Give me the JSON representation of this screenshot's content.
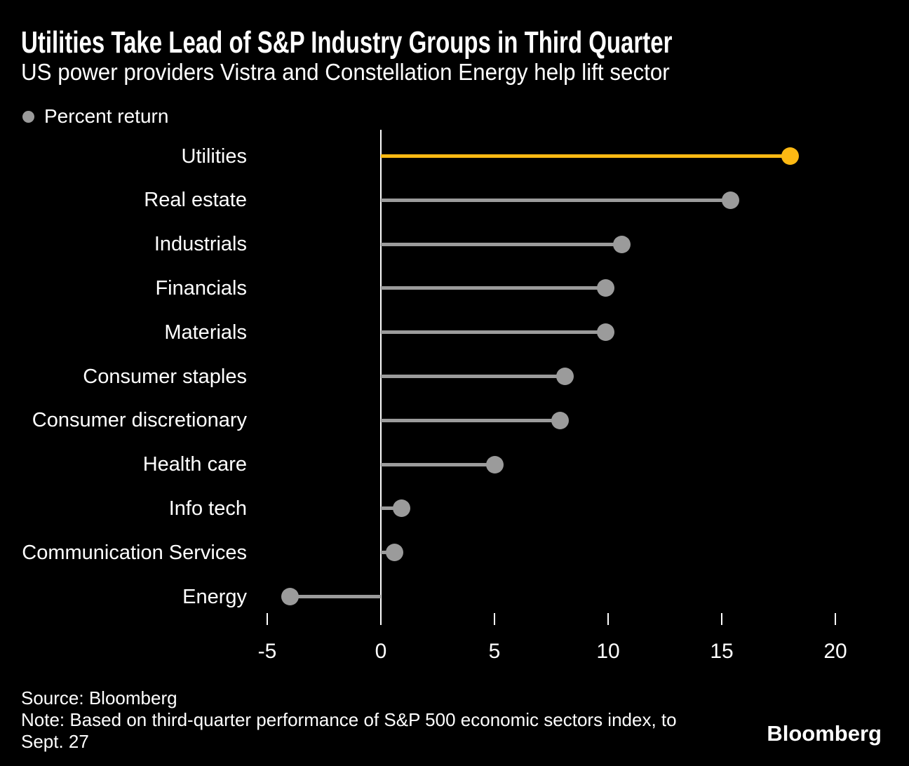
{
  "header": {
    "title": "Utilities Take Lead of S&P Industry Groups in Third Quarter",
    "subtitle": "US power providers Vistra and Constellation Energy help lift sector"
  },
  "legend": {
    "label": "Percent return"
  },
  "chart_data": {
    "type": "lollipop",
    "orientation": "horizontal",
    "title": "Utilities Take Lead of S&P Industry Groups in Third Quarter",
    "subtitle": "US power providers Vistra and Constellation Energy help lift sector",
    "legend_label": "Percent return",
    "legend_position": "top-left",
    "categories": [
      "Utilities",
      "Real estate",
      "Industrials",
      "Financials",
      "Materials",
      "Consumer staples",
      "Consumer discretionary",
      "Health care",
      "Info tech",
      "Communication Services",
      "Energy"
    ],
    "values": [
      18.0,
      15.4,
      10.6,
      9.9,
      9.9,
      8.1,
      7.9,
      5.0,
      0.9,
      0.6,
      -4.0
    ],
    "xlabel": "",
    "ylabel": "",
    "x_ticks": [
      -5,
      0,
      5,
      10,
      15,
      20
    ],
    "xlim": [
      -6,
      23
    ],
    "grid": false,
    "highlight_category": "Utilities",
    "highlight_color": "#FDB913",
    "series_color": "#9b9b9b",
    "axis_color": "#ffffff",
    "background_color": "#000000",
    "text_color": "#ffffff"
  },
  "footer": {
    "source": "Source: Bloomberg",
    "note_line1": "Note: Based on third-quarter performance of S&P 500 economic sectors index, to",
    "note_line2": "Sept. 27",
    "logo": "Bloomberg"
  }
}
